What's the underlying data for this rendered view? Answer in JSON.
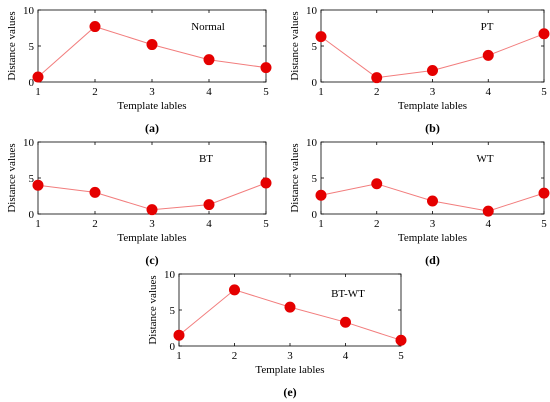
{
  "colors": {
    "line": "#f27d7d",
    "marker": "#e50000",
    "axis": "#000000"
  },
  "chart_data": [
    {
      "type": "line",
      "title": "Normal",
      "panel_label": "(a)",
      "xlabel": "Template lables",
      "ylabel": "Distance values",
      "x": [
        1,
        2,
        3,
        4,
        5
      ],
      "values": [
        0.7,
        7.7,
        5.2,
        3.1,
        2.0
      ],
      "xlim": [
        1,
        5
      ],
      "ylim": [
        0,
        10
      ],
      "xticks": [
        "1",
        "2",
        "3",
        "4",
        "5"
      ],
      "yticks": [
        "0",
        "5",
        "10"
      ],
      "grid": false
    },
    {
      "type": "line",
      "title": "PT",
      "panel_label": "(b)",
      "xlabel": "Template lables",
      "ylabel": "Distance values",
      "x": [
        1,
        2,
        3,
        4,
        5
      ],
      "values": [
        6.3,
        0.6,
        1.6,
        3.7,
        6.7
      ],
      "xlim": [
        1,
        5
      ],
      "ylim": [
        0,
        10
      ],
      "xticks": [
        "1",
        "2",
        "3",
        "4",
        "5"
      ],
      "yticks": [
        "0",
        "5",
        "10"
      ],
      "grid": false
    },
    {
      "type": "line",
      "title": "BT",
      "panel_label": "(c)",
      "xlabel": "Template lables",
      "ylabel": "Distance values",
      "x": [
        1,
        2,
        3,
        4,
        5
      ],
      "values": [
        4.0,
        3.0,
        0.6,
        1.3,
        4.3
      ],
      "xlim": [
        1,
        5
      ],
      "ylim": [
        0,
        10
      ],
      "xticks": [
        "1",
        "2",
        "3",
        "4",
        "5"
      ],
      "yticks": [
        "0",
        "5",
        "10"
      ],
      "grid": false
    },
    {
      "type": "line",
      "title": "WT",
      "panel_label": "(d)",
      "xlabel": "Template lables",
      "ylabel": "Distance values",
      "x": [
        1,
        2,
        3,
        4,
        5
      ],
      "values": [
        2.6,
        4.2,
        1.8,
        0.4,
        2.9
      ],
      "xlim": [
        1,
        5
      ],
      "ylim": [
        0,
        10
      ],
      "xticks": [
        "1",
        "2",
        "3",
        "4",
        "5"
      ],
      "yticks": [
        "0",
        "5",
        "10"
      ],
      "grid": false
    },
    {
      "type": "line",
      "title": "BT-WT",
      "panel_label": "(e)",
      "xlabel": "Template lables",
      "ylabel": "Distance values",
      "x": [
        1,
        2,
        3,
        4,
        5
      ],
      "values": [
        1.5,
        7.8,
        5.4,
        3.3,
        0.8
      ],
      "xlim": [
        1,
        5
      ],
      "ylim": [
        0,
        10
      ],
      "xticks": [
        "1",
        "2",
        "3",
        "4",
        "5"
      ],
      "yticks": [
        "0",
        "5",
        "10"
      ],
      "grid": false
    }
  ]
}
